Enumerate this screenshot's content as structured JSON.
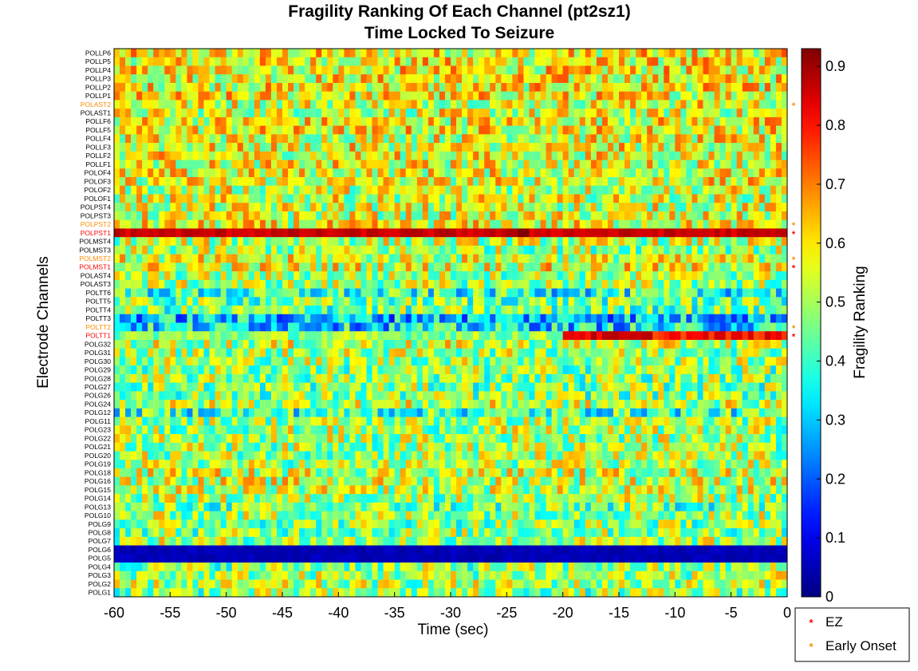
{
  "chart_data": {
    "type": "heatmap",
    "title": "Fragility Ranking Of Each Channel (pt2sz1)",
    "subtitle": "Time Locked To Seizure",
    "xlabel": "Time (sec)",
    "ylabel": "Electrode Channels",
    "xlim": [
      -60,
      0
    ],
    "x_ticks": [
      "-60",
      "-55",
      "-50",
      "-45",
      "-40",
      "-35",
      "-30",
      "-25",
      "-20",
      "-15",
      "-10",
      "-5",
      "0"
    ],
    "channels": [
      "POLLP6",
      "POLLP5",
      "POLLP4",
      "POLLP3",
      "POLLP2",
      "POLLP1",
      "POLAST2",
      "POLAST1",
      "POLLF6",
      "POLLF5",
      "POLLF4",
      "POLLF3",
      "POLLF2",
      "POLLF1",
      "POLOF4",
      "POLOF3",
      "POLOF2",
      "POLOF1",
      "POLPST4",
      "POLPST3",
      "POLPST2",
      "POLPST1",
      "POLMST4",
      "POLMST3",
      "POLMST2",
      "POLMST1",
      "POLAST4",
      "POLAST3",
      "POLTT6",
      "POLTT5",
      "POLTT4",
      "POLTT3",
      "POLTT2",
      "POLTT1",
      "POLG32",
      "POLG31",
      "POLG30",
      "POLG29",
      "POLG28",
      "POLG27",
      "POLG26",
      "POLG24",
      "POLG12",
      "POLG11",
      "POLG23",
      "POLG22",
      "POLG21",
      "POLG20",
      "POLG19",
      "POLG18",
      "POLG16",
      "POLG15",
      "POLG14",
      "POLG13",
      "POLG10",
      "POLG9",
      "POLG8",
      "POLG7",
      "POLG6",
      "POLG5",
      "POLG4",
      "POLG3",
      "POLG2",
      "POLG1"
    ],
    "channel_mean_values": [
      0.58,
      0.58,
      0.58,
      0.58,
      0.58,
      0.58,
      0.56,
      0.54,
      0.58,
      0.58,
      0.56,
      0.56,
      0.56,
      0.56,
      0.56,
      0.56,
      0.54,
      0.54,
      0.54,
      0.54,
      0.56,
      0.86,
      0.52,
      0.5,
      0.54,
      0.56,
      0.5,
      0.5,
      0.38,
      0.45,
      0.45,
      0.3,
      0.33,
      0.52,
      0.52,
      0.5,
      0.5,
      0.48,
      0.48,
      0.47,
      0.47,
      0.52,
      0.4,
      0.5,
      0.5,
      0.5,
      0.5,
      0.5,
      0.5,
      0.54,
      0.54,
      0.52,
      0.5,
      0.44,
      0.5,
      0.48,
      0.48,
      0.5,
      0.05,
      0.05,
      0.48,
      0.5,
      0.5,
      0.48
    ],
    "highlighted_channel_values": {
      "POLPST1": {
        "t_minus_60_to_0": 0.86,
        "peak_window": [
          -24,
          -23
        ],
        "peak": 0.93
      },
      "POLTT1": {
        "before_minus_20": 0.48,
        "from_minus_20_to_minus_12": 0.84,
        "after_minus_11": 0.8
      },
      "POLG6": {
        "all": 0.05
      },
      "POLG5": {
        "all": 0.05
      }
    },
    "colorbar": {
      "label": "Fragility Ranking",
      "ticks": [
        "0",
        "0.1",
        "0.2",
        "0.3",
        "0.4",
        "0.5",
        "0.6",
        "0.7",
        "0.8",
        "0.9"
      ],
      "range": [
        0,
        0.93
      ],
      "colormap": "jet"
    },
    "markers": {
      "EZ": [
        "POLPST1",
        "POLMST1",
        "POLTT1"
      ],
      "Early Onset": [
        "POLAST2",
        "POLPST2",
        "POLMST2",
        "POLTT2"
      ]
    },
    "legend": {
      "placement": "bottom-right",
      "entries": [
        {
          "label": "EZ",
          "color": "#ff0000"
        },
        {
          "label": "Early Onset",
          "color": "#ff8c00"
        }
      ]
    },
    "colors": {
      "ez": "#ff0000",
      "early_onset": "#ff8c00",
      "default_label": "#000000"
    }
  }
}
